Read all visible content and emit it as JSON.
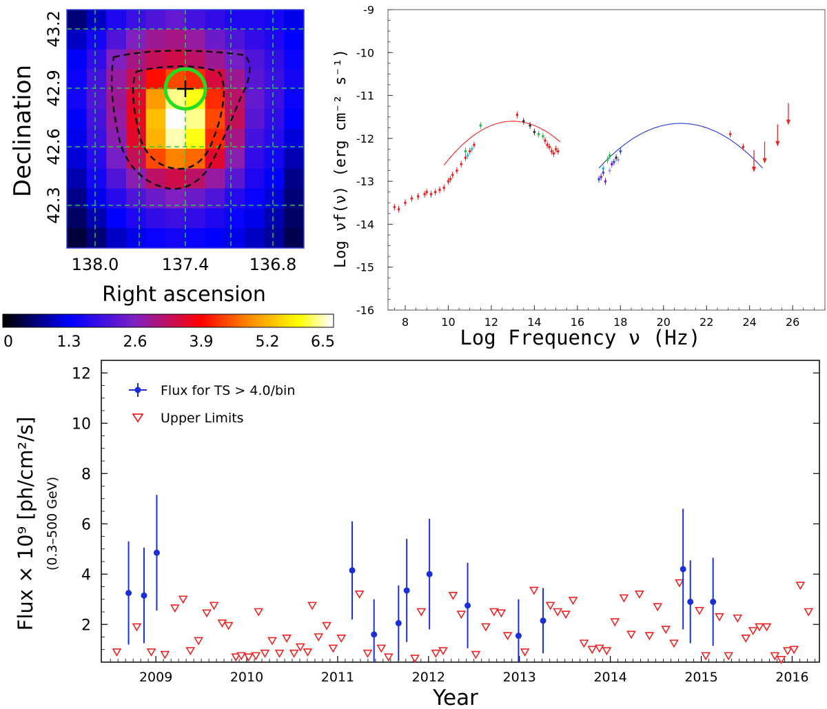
{
  "chart_data": [
    {
      "type": "heatmap",
      "xlabel": "Right ascension",
      "ylabel": "Declination",
      "x_ticks": [
        "138.0",
        "137.4",
        "136.8"
      ],
      "y_ticks": [
        "42.3",
        "42.6",
        "42.9",
        "43.2"
      ],
      "colorbar": {
        "ticks": [
          "0",
          "1.3",
          "2.6",
          "3.9",
          "5.2",
          "6.5"
        ],
        "range": [
          0,
          6.5
        ]
      },
      "grid": "dashed green",
      "marker": {
        "ra": 137.4,
        "dec": 42.9,
        "symbol": "+",
        "circle_color": "#22dd22"
      },
      "n_cols": 12,
      "n_rows": 12,
      "values": [
        [
          0.6,
          1.0,
          1.6,
          1.9,
          2.1,
          2.3,
          2.0,
          1.8,
          1.6,
          1.6,
          1.5,
          1.2
        ],
        [
          1.0,
          1.5,
          2.1,
          2.6,
          2.9,
          3.0,
          2.8,
          2.4,
          2.1,
          1.8,
          1.6,
          1.3
        ],
        [
          1.3,
          1.8,
          2.6,
          3.0,
          3.3,
          3.4,
          3.2,
          2.9,
          2.5,
          2.1,
          1.8,
          1.4
        ],
        [
          1.4,
          2.0,
          2.8,
          3.3,
          4.0,
          4.4,
          4.2,
          3.5,
          2.9,
          2.2,
          1.9,
          1.5
        ],
        [
          1.5,
          2.1,
          2.9,
          3.6,
          5.0,
          6.2,
          5.9,
          4.2,
          3.2,
          2.3,
          1.9,
          1.4
        ],
        [
          1.3,
          2.0,
          2.8,
          3.7,
          5.3,
          6.5,
          6.2,
          4.4,
          3.3,
          2.2,
          1.8,
          1.3
        ],
        [
          1.2,
          1.9,
          2.7,
          3.6,
          5.2,
          6.3,
          5.9,
          4.2,
          3.0,
          2.0,
          1.7,
          1.1
        ],
        [
          1.1,
          1.7,
          2.5,
          3.3,
          4.4,
          4.8,
          4.6,
          3.6,
          2.7,
          1.8,
          1.5,
          0.9
        ],
        [
          0.9,
          1.5,
          2.1,
          2.7,
          3.2,
          3.4,
          3.2,
          2.8,
          2.2,
          1.6,
          1.3,
          0.7
        ],
        [
          0.7,
          1.2,
          1.7,
          2.1,
          2.4,
          2.6,
          2.4,
          2.1,
          1.7,
          1.4,
          1.1,
          0.6
        ],
        [
          0.5,
          0.9,
          1.3,
          1.6,
          1.8,
          1.9,
          1.8,
          1.6,
          1.4,
          1.2,
          0.9,
          0.5
        ],
        [
          0.3,
          0.6,
          1.0,
          1.2,
          1.4,
          1.5,
          1.4,
          1.3,
          1.2,
          1.0,
          0.8,
          0.4
        ]
      ]
    },
    {
      "type": "scatter",
      "xlabel": "Log Frequency ν (Hz)",
      "ylabel": "Log νf(ν) (erg cm⁻² s⁻¹)",
      "xlim": [
        7.2,
        27.5
      ],
      "ylim": [
        -16,
        -9
      ],
      "x_ticks": [
        8,
        10,
        12,
        14,
        16,
        18,
        20,
        22,
        24,
        26
      ],
      "y_ticks": [
        -16,
        -15,
        -14,
        -13,
        -12,
        -11,
        -10,
        -9
      ],
      "fits": [
        {
          "color": "#ee3333",
          "peak_x": 13.0,
          "peak_y": -11.6,
          "curv": 0.1,
          "xrange": [
            9.8,
            15.2
          ]
        },
        {
          "color": "#3344dd",
          "peak_x": 20.8,
          "peak_y": -11.65,
          "curv": 0.0722,
          "xrange": [
            17.0,
            24.6
          ]
        }
      ],
      "series": [
        {
          "color": "#ee2222",
          "points": [
            [
              7.5,
              -13.6
            ],
            [
              7.7,
              -13.65
            ],
            [
              8.0,
              -13.5
            ],
            [
              8.3,
              -13.4
            ],
            [
              8.6,
              -13.35
            ],
            [
              8.9,
              -13.3
            ],
            [
              9.0,
              -13.25
            ],
            [
              9.2,
              -13.3
            ],
            [
              9.4,
              -13.25
            ],
            [
              9.6,
              -13.2
            ],
            [
              9.8,
              -13.15
            ],
            [
              10.0,
              -13.0
            ],
            [
              10.1,
              -12.95
            ],
            [
              10.2,
              -12.85
            ],
            [
              10.4,
              -12.75
            ],
            [
              10.6,
              -12.6
            ],
            [
              10.8,
              -12.45
            ],
            [
              11.0,
              -12.3
            ],
            [
              11.2,
              -12.15
            ],
            [
              13.2,
              -11.45
            ],
            [
              14.5,
              -12.05
            ],
            [
              14.6,
              -12.15
            ],
            [
              14.7,
              -12.2
            ],
            [
              14.8,
              -12.3
            ],
            [
              14.9,
              -12.35
            ],
            [
              15.0,
              -12.25
            ],
            [
              15.1,
              -12.3
            ],
            [
              23.1,
              -11.9
            ],
            [
              23.7,
              -12.2
            ]
          ]
        },
        {
          "color": "#22bb44",
          "points": [
            [
              11.5,
              -11.7
            ],
            [
              10.8,
              -12.3
            ],
            [
              14.2,
              -11.9
            ],
            [
              14.4,
              -11.95
            ],
            [
              17.4,
              -12.5
            ],
            [
              17.5,
              -12.4
            ]
          ]
        },
        {
          "color": "#22bbdd",
          "points": [
            [
              10.9,
              -12.4
            ],
            [
              11.1,
              -12.25
            ],
            [
              17.2,
              -12.7
            ]
          ]
        },
        {
          "color": "#333333",
          "points": [
            [
              13.5,
              -11.6
            ],
            [
              13.8,
              -11.7
            ],
            [
              14.0,
              -11.85
            ],
            [
              17.8,
              -12.45
            ]
          ]
        },
        {
          "color": "#7722aa",
          "points": [
            [
              17.1,
              -12.9
            ],
            [
              17.3,
              -13.0
            ],
            [
              17.6,
              -12.6
            ]
          ]
        },
        {
          "color": "#3344dd",
          "points": [
            [
              17.0,
              -12.95
            ],
            [
              17.2,
              -12.8
            ],
            [
              17.7,
              -12.55
            ],
            [
              18.0,
              -12.3
            ]
          ]
        },
        {
          "color": "#9999ee",
          "points": [
            [
              17.5,
              -12.75
            ],
            [
              17.9,
              -12.5
            ]
          ]
        }
      ],
      "upper_limits": [
        [
          24.2,
          -12.5
        ],
        [
          24.7,
          -12.3
        ],
        [
          25.3,
          -11.9
        ],
        [
          25.8,
          -11.4
        ]
      ],
      "upper_limit_color": "#ee2222"
    },
    {
      "type": "scatter",
      "xlabel": "Year",
      "ylabel": "Flux × 10⁹ [ph/cm²/s]",
      "ylabel_sub": "(0.3–500 GeV)",
      "xlim": [
        2008.4,
        2016.3
      ],
      "ylim": [
        0.5,
        12.5
      ],
      "x_ticks": [
        2009,
        2010,
        2011,
        2012,
        2013,
        2014,
        2015,
        2016
      ],
      "y_ticks": [
        2,
        4,
        6,
        8,
        10,
        12
      ],
      "legend": [
        {
          "label": "Flux for TS > 4.0/bin",
          "symbol": "point",
          "color": "#1a2fd6"
        },
        {
          "label": "Upper Limits",
          "symbol": "triangle",
          "color": "#ee2222"
        }
      ],
      "legend_position": "top-left",
      "detections": [
        {
          "x": 2008.7,
          "y": 3.25,
          "err": 2.05
        },
        {
          "x": 2008.87,
          "y": 3.15,
          "err": 1.9
        },
        {
          "x": 2009.01,
          "y": 4.85,
          "err": 2.3
        },
        {
          "x": 2011.16,
          "y": 4.15,
          "err": 1.95
        },
        {
          "x": 2011.4,
          "y": 1.6,
          "err": 1.4
        },
        {
          "x": 2011.67,
          "y": 2.05,
          "err": 1.5
        },
        {
          "x": 2011.76,
          "y": 3.35,
          "err": 2.05
        },
        {
          "x": 2012.01,
          "y": 4.0,
          "err": 2.2
        },
        {
          "x": 2012.43,
          "y": 2.75,
          "err": 1.7
        },
        {
          "x": 2012.99,
          "y": 1.55,
          "err": 1.45
        },
        {
          "x": 2013.26,
          "y": 2.15,
          "err": 1.3
        },
        {
          "x": 2014.8,
          "y": 4.2,
          "err": 2.4
        },
        {
          "x": 2014.88,
          "y": 2.9,
          "err": 1.65
        },
        {
          "x": 2015.13,
          "y": 2.9,
          "err": 1.75
        }
      ],
      "upper_limits": [
        [
          2008.57,
          0.9
        ],
        [
          2008.79,
          1.9
        ],
        [
          2008.95,
          0.9
        ],
        [
          2009.1,
          0.8
        ],
        [
          2009.21,
          2.65
        ],
        [
          2009.3,
          3.0
        ],
        [
          2009.38,
          0.95
        ],
        [
          2009.47,
          1.35
        ],
        [
          2009.56,
          2.45
        ],
        [
          2009.64,
          2.75
        ],
        [
          2009.73,
          2.05
        ],
        [
          2009.8,
          1.95
        ],
        [
          2009.88,
          0.7
        ],
        [
          2009.94,
          0.75
        ],
        [
          2010.02,
          0.7
        ],
        [
          2010.1,
          0.75
        ],
        [
          2010.13,
          2.5
        ],
        [
          2010.2,
          0.85
        ],
        [
          2010.28,
          1.35
        ],
        [
          2010.36,
          0.85
        ],
        [
          2010.44,
          1.45
        ],
        [
          2010.52,
          0.85
        ],
        [
          2010.59,
          1.1
        ],
        [
          2010.67,
          0.9
        ],
        [
          2010.72,
          2.75
        ],
        [
          2010.79,
          1.5
        ],
        [
          2010.88,
          1.95
        ],
        [
          2010.95,
          1.05
        ],
        [
          2011.04,
          1.45
        ],
        [
          2011.24,
          3.2
        ],
        [
          2011.33,
          0.85
        ],
        [
          2011.48,
          1.05
        ],
        [
          2011.56,
          0.7
        ],
        [
          2011.85,
          0.65
        ],
        [
          2011.92,
          2.5
        ],
        [
          2012.08,
          0.85
        ],
        [
          2012.16,
          0.95
        ],
        [
          2012.27,
          3.15
        ],
        [
          2012.36,
          2.4
        ],
        [
          2012.52,
          0.8
        ],
        [
          2012.63,
          1.9
        ],
        [
          2012.72,
          2.5
        ],
        [
          2012.8,
          2.45
        ],
        [
          2012.87,
          1.55
        ],
        [
          2013.06,
          0.9
        ],
        [
          2013.16,
          3.35
        ],
        [
          2013.34,
          2.75
        ],
        [
          2013.42,
          2.5
        ],
        [
          2013.51,
          2.4
        ],
        [
          2013.59,
          2.95
        ],
        [
          2013.71,
          1.25
        ],
        [
          2013.8,
          1.0
        ],
        [
          2013.88,
          1.05
        ],
        [
          2013.96,
          0.95
        ],
        [
          2014.05,
          2.1
        ],
        [
          2014.15,
          3.05
        ],
        [
          2014.23,
          1.6
        ],
        [
          2014.32,
          3.2
        ],
        [
          2014.43,
          1.55
        ],
        [
          2014.52,
          2.7
        ],
        [
          2014.61,
          1.8
        ],
        [
          2014.7,
          1.25
        ],
        [
          2014.76,
          3.65
        ],
        [
          2014.98,
          2.55
        ],
        [
          2015.05,
          0.75
        ],
        [
          2015.2,
          2.3
        ],
        [
          2015.3,
          0.75
        ],
        [
          2015.4,
          2.25
        ],
        [
          2015.49,
          1.45
        ],
        [
          2015.57,
          1.75
        ],
        [
          2015.64,
          1.9
        ],
        [
          2015.72,
          1.9
        ],
        [
          2015.81,
          0.75
        ],
        [
          2015.88,
          0.6
        ],
        [
          2015.95,
          0.95
        ],
        [
          2016.02,
          1.0
        ],
        [
          2016.09,
          3.55
        ],
        [
          2016.18,
          2.5
        ]
      ],
      "colors": {
        "detection": "#1a2fd6",
        "upper_limit": "#ee2222"
      }
    }
  ]
}
